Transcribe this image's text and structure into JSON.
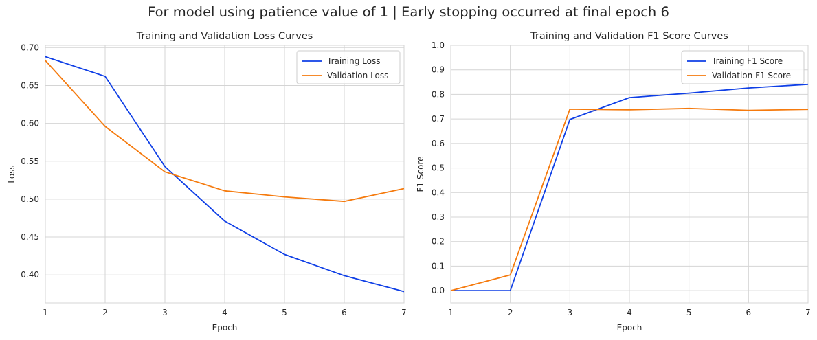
{
  "figure_title": "For model using patience value of 1 | Early stopping occurred at final epoch 6",
  "colors": {
    "training": "#0f3fe6",
    "validation": "#f57a0d",
    "grid": "#d4d4d4"
  },
  "chart_data": [
    {
      "type": "line",
      "title": "Training and Validation Loss Curves",
      "xlabel": "Epoch",
      "ylabel": "Loss",
      "x": [
        1,
        2,
        3,
        4,
        5,
        6,
        7
      ],
      "xlim": [
        1,
        7
      ],
      "ylim": [
        0.363,
        0.703
      ],
      "xticks": [
        "1",
        "2",
        "3",
        "4",
        "5",
        "6",
        "7"
      ],
      "yticks": [
        0.4,
        0.45,
        0.5,
        0.55,
        0.6,
        0.65,
        0.7
      ],
      "yticklabels": [
        "0.40",
        "0.45",
        "0.50",
        "0.55",
        "0.60",
        "0.65",
        "0.70"
      ],
      "legend_position": "top-right",
      "grid": true,
      "series": [
        {
          "name": "Training Loss",
          "values": [
            0.688,
            0.662,
            0.543,
            0.471,
            0.427,
            0.399,
            0.378
          ]
        },
        {
          "name": "Validation Loss",
          "values": [
            0.683,
            0.596,
            0.536,
            0.511,
            0.503,
            0.497,
            0.514
          ]
        }
      ]
    },
    {
      "type": "line",
      "title": "Training and Validation F1 Score Curves",
      "xlabel": "Epoch",
      "ylabel": "F1 Score",
      "x": [
        1,
        2,
        3,
        4,
        5,
        6,
        7
      ],
      "xlim": [
        1,
        7
      ],
      "ylim": [
        -0.05,
        1.0
      ],
      "xticks": [
        "1",
        "2",
        "3",
        "4",
        "5",
        "6",
        "7"
      ],
      "yticks": [
        0.0,
        0.1,
        0.2,
        0.3,
        0.4,
        0.5,
        0.6,
        0.7,
        0.8,
        0.9,
        1.0
      ],
      "yticklabels": [
        "0.0",
        "0.1",
        "0.2",
        "0.3",
        "0.4",
        "0.5",
        "0.6",
        "0.7",
        "0.8",
        "0.9",
        "1.0"
      ],
      "legend_position": "top-right",
      "grid": true,
      "series": [
        {
          "name": "Training F1 Score",
          "values": [
            0.0,
            0.0,
            0.698,
            0.787,
            0.805,
            0.826,
            0.841
          ]
        },
        {
          "name": "Validation F1 Score",
          "values": [
            0.0,
            0.064,
            0.74,
            0.737,
            0.743,
            0.735,
            0.739
          ]
        }
      ]
    }
  ]
}
